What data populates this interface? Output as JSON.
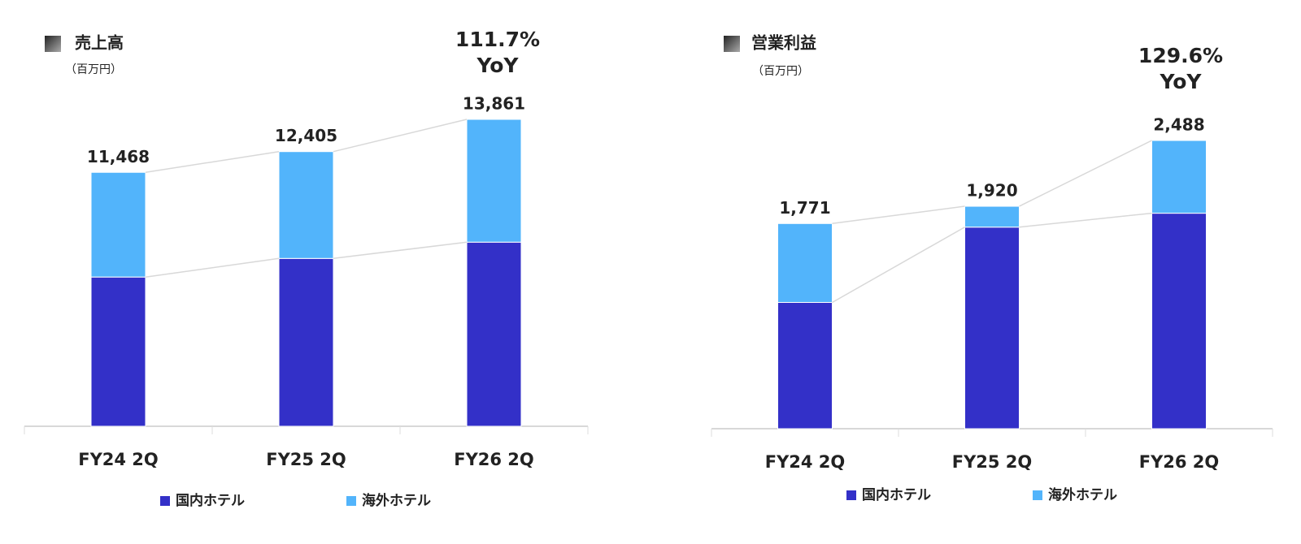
{
  "chart_data": [
    {
      "type": "bar",
      "stacked": true,
      "title": "売上高",
      "subtitle": "（百万円）",
      "annotation": [
        "111.7%",
        "YoY"
      ],
      "categories": [
        "FY24 2Q",
        "FY25 2Q",
        "FY26 2Q"
      ],
      "series": [
        {
          "name": "国内ホテル",
          "color": "#3330c8",
          "values": [
            6740,
            7580,
            8315
          ]
        },
        {
          "name": "海外ホテル",
          "color": "#52b4fb",
          "values": [
            4728,
            4825,
            5546
          ]
        }
      ],
      "totals": [
        11468,
        12405,
        13861
      ],
      "total_labels": [
        "11,468",
        "12,405",
        "13,861"
      ]
    },
    {
      "type": "bar",
      "stacked": true,
      "title": "営業利益",
      "subtitle": "（百万円）",
      "annotation": [
        "129.6%",
        "YoY"
      ],
      "categories": [
        "FY24 2Q",
        "FY25 2Q",
        "FY26 2Q"
      ],
      "series": [
        {
          "name": "国内ホテル",
          "color": "#3330c8",
          "values": [
            1090,
            1740,
            1860
          ]
        },
        {
          "name": "海外ホテル",
          "color": "#52b4fb",
          "values": [
            681,
            180,
            628
          ]
        }
      ],
      "totals": [
        1771,
        1920,
        2488
      ],
      "total_labels": [
        "1,771",
        "1,920",
        "2,488"
      ]
    }
  ]
}
